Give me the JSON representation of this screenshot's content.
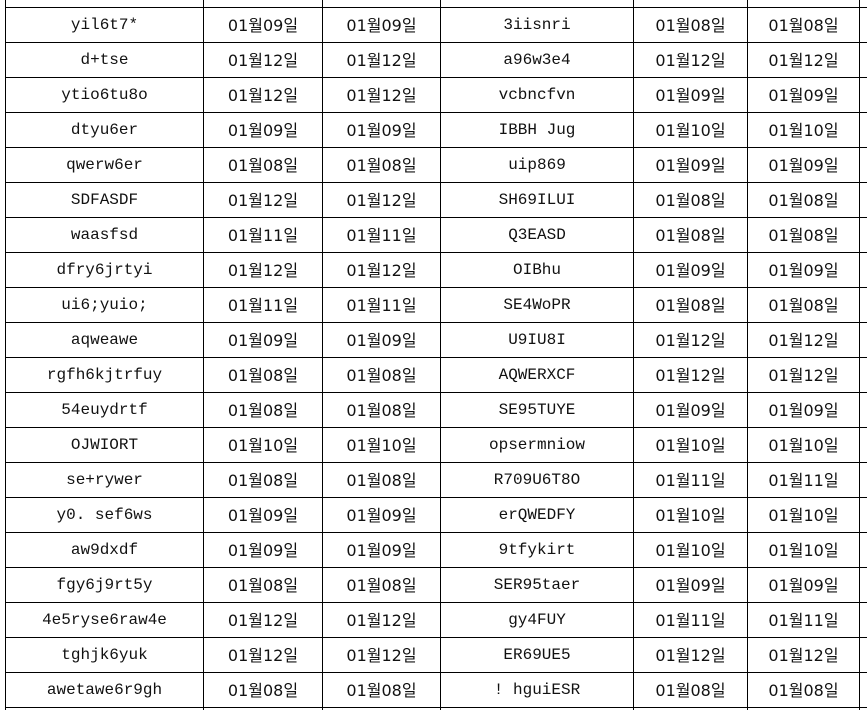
{
  "sheet": {
    "rows": [
      [
        "yil6t7*",
        "01월09일",
        "01월09일",
        "3iisnri",
        "01월08일",
        "01월08일"
      ],
      [
        "d+tse",
        "01월12일",
        "01월12일",
        "a96w3e4",
        "01월12일",
        "01월12일"
      ],
      [
        "ytio6tu8o",
        "01월12일",
        "01월12일",
        "vcbncfvn",
        "01월09일",
        "01월09일"
      ],
      [
        "dtyu6er",
        "01월09일",
        "01월09일",
        "IBBH Jug",
        "01월10일",
        "01월10일"
      ],
      [
        "qwerw6er",
        "01월08일",
        "01월08일",
        "uip869",
        "01월09일",
        "01월09일"
      ],
      [
        "SDFASDF",
        "01월12일",
        "01월12일",
        "SH69ILUI",
        "01월08일",
        "01월08일"
      ],
      [
        "waasfsd",
        "01월11일",
        "01월11일",
        "Q3EASD",
        "01월08일",
        "01월08일"
      ],
      [
        "dfry6jrtyi",
        "01월12일",
        "01월12일",
        "OIBhu",
        "01월09일",
        "01월09일"
      ],
      [
        "ui6;yuio;",
        "01월11일",
        "01월11일",
        "SE4WoPR",
        "01월08일",
        "01월08일"
      ],
      [
        "aqweawe",
        "01월09일",
        "01월09일",
        "U9IU8I",
        "01월12일",
        "01월12일"
      ],
      [
        "rgfh6kjtrfuy",
        "01월08일",
        "01월08일",
        "AQWERXCF",
        "01월12일",
        "01월12일"
      ],
      [
        "54euydrtf",
        "01월08일",
        "01월08일",
        "SE95TUYE",
        "01월09일",
        "01월09일"
      ],
      [
        "OJWIORT",
        "01월10일",
        "01월10일",
        "opsermniow",
        "01월10일",
        "01월10일"
      ],
      [
        "se+rywer",
        "01월08일",
        "01월08일",
        "R709U6T8O",
        "01월11일",
        "01월11일"
      ],
      [
        "y0. sef6ws",
        "01월09일",
        "01월09일",
        "erQWEDFY",
        "01월10일",
        "01월10일"
      ],
      [
        "aw9dxdf",
        "01월09일",
        "01월09일",
        "9tfykirt",
        "01월10일",
        "01월10일"
      ],
      [
        "fgy6j9rt5y",
        "01월08일",
        "01월08일",
        "SER95taer",
        "01월09일",
        "01월09일"
      ],
      [
        "4e5ryse6raw4e",
        "01월12일",
        "01월12일",
        "gy4FUY",
        "01월11일",
        "01월11일"
      ],
      [
        "tghjk6yuk",
        "01월12일",
        "01월12일",
        "ER69UE5",
        "01월12일",
        "01월12일"
      ],
      [
        "awetawe6r9gh",
        "01월08일",
        "01월08일",
        "! hguiESR",
        "01월08일",
        "01월08일"
      ]
    ]
  }
}
